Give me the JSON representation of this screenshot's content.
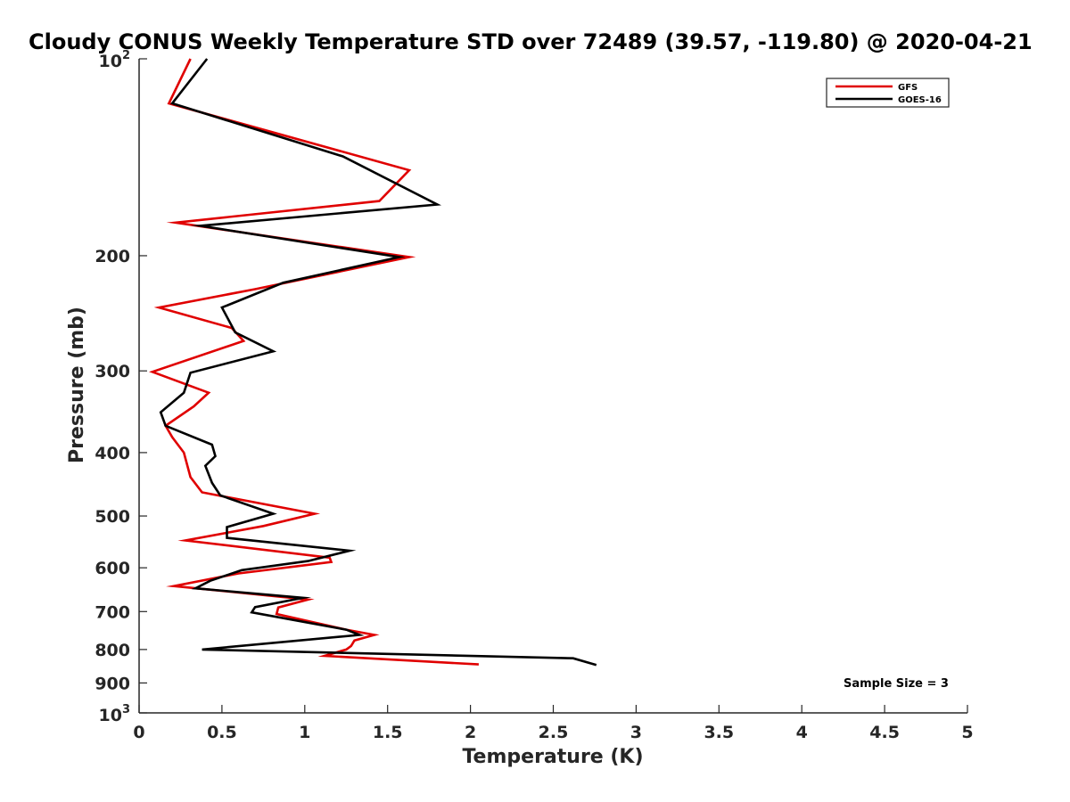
{
  "chart_data": {
    "type": "line",
    "title": "Cloudy CONUS Weekly Temperature STD over 72489 (39.57, -119.80) @ 2020-04-21",
    "xlabel": "Temperature (K)",
    "ylabel": "Pressure (mb)",
    "xlim": [
      0,
      5
    ],
    "ylim": [
      100,
      1000
    ],
    "y_scale": "log",
    "y_reversed": true,
    "grid": false,
    "legend_position": "top-right",
    "x_ticks": [
      "0",
      "0.5",
      "1",
      "1.5",
      "2",
      "2.5",
      "3",
      "3.5",
      "4",
      "4.5",
      "5"
    ],
    "y_ticks": [
      {
        "value": 100,
        "base": "10",
        "exp": "2",
        "label": ""
      },
      {
        "value": 200,
        "base": "",
        "exp": "",
        "label": "200"
      },
      {
        "value": 300,
        "base": "",
        "exp": "",
        "label": "300"
      },
      {
        "value": 400,
        "base": "",
        "exp": "",
        "label": "400"
      },
      {
        "value": 500,
        "base": "",
        "exp": "",
        "label": "500"
      },
      {
        "value": 600,
        "base": "",
        "exp": "",
        "label": "600"
      },
      {
        "value": 700,
        "base": "",
        "exp": "",
        "label": "700"
      },
      {
        "value": 800,
        "base": "",
        "exp": "",
        "label": "800"
      },
      {
        "value": 900,
        "base": "",
        "exp": "",
        "label": "900"
      },
      {
        "value": 1000,
        "base": "10",
        "exp": "3",
        "label": ""
      }
    ],
    "annotation": "Sample Size = 3",
    "series": [
      {
        "name": "GFS",
        "color": "#e00000",
        "points": [
          [
            0.31,
            100
          ],
          [
            0.18,
            117
          ],
          [
            1.63,
            148
          ],
          [
            1.45,
            165
          ],
          [
            0.22,
            178
          ],
          [
            1.63,
            201
          ],
          [
            0.7,
            225
          ],
          [
            0.12,
            240
          ],
          [
            0.56,
            258
          ],
          [
            0.63,
            270
          ],
          [
            0.08,
            301
          ],
          [
            0.42,
            324
          ],
          [
            0.33,
            340
          ],
          [
            0.16,
            364
          ],
          [
            0.2,
            379
          ],
          [
            0.27,
            400
          ],
          [
            0.31,
            436
          ],
          [
            0.38,
            460
          ],
          [
            1.06,
            496
          ],
          [
            0.75,
            518
          ],
          [
            0.28,
            545
          ],
          [
            1.15,
            579
          ],
          [
            1.16,
            588
          ],
          [
            0.6,
            612
          ],
          [
            0.21,
            640
          ],
          [
            1.02,
            671
          ],
          [
            0.84,
            690
          ],
          [
            0.83,
            706
          ],
          [
            1.0,
            722
          ],
          [
            1.25,
            746
          ],
          [
            1.42,
            760
          ],
          [
            1.3,
            775
          ],
          [
            1.28,
            790
          ],
          [
            1.25,
            800
          ],
          [
            1.12,
            818
          ],
          [
            2.05,
            843
          ]
        ]
      },
      {
        "name": "GOES-16",
        "color": "#000000",
        "points": [
          [
            0.41,
            100
          ],
          [
            0.2,
            117
          ],
          [
            1.23,
            141
          ],
          [
            1.8,
            167
          ],
          [
            0.37,
            180
          ],
          [
            1.57,
            201
          ],
          [
            0.87,
            220
          ],
          [
            0.5,
            240
          ],
          [
            0.58,
            262
          ],
          [
            0.81,
            280
          ],
          [
            0.31,
            302
          ],
          [
            0.27,
            324
          ],
          [
            0.13,
            347
          ],
          [
            0.16,
            364
          ],
          [
            0.44,
            389
          ],
          [
            0.46,
            405
          ],
          [
            0.4,
            419
          ],
          [
            0.44,
            445
          ],
          [
            0.49,
            465
          ],
          [
            0.81,
            496
          ],
          [
            0.53,
            520
          ],
          [
            0.53,
            540
          ],
          [
            1.27,
            565
          ],
          [
            1.02,
            586
          ],
          [
            0.62,
            605
          ],
          [
            0.43,
            628
          ],
          [
            0.34,
            645
          ],
          [
            0.99,
            667
          ],
          [
            0.7,
            689
          ],
          [
            0.68,
            702
          ],
          [
            1.25,
            746
          ],
          [
            1.33,
            760
          ],
          [
            0.38,
            800
          ],
          [
            2.62,
            825
          ],
          [
            2.76,
            845
          ]
        ]
      }
    ]
  }
}
